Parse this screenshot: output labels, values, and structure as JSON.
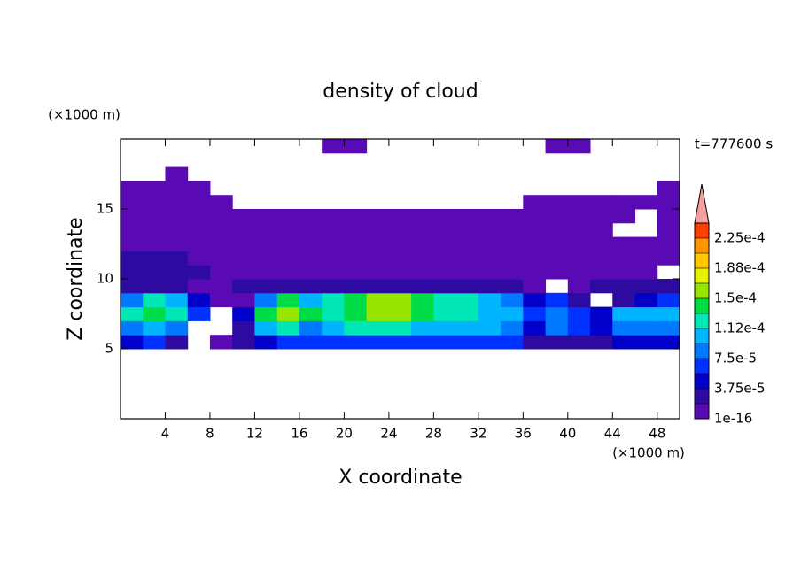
{
  "chart_data": {
    "type": "contourf",
    "title": "density of cloud",
    "xlabel": "X coordinate",
    "ylabel": "Z coordinate",
    "x_unit": "(×1000 m)",
    "y_unit": "(×1000 m)",
    "annotation": "t=777600 s",
    "xlim": [
      0,
      50
    ],
    "ylim": [
      0,
      20
    ],
    "xticks": [
      4,
      8,
      12,
      16,
      20,
      24,
      28,
      32,
      36,
      40,
      44,
      48
    ],
    "yticks": [
      5,
      10,
      15
    ],
    "colorbar": {
      "levels": [
        {
          "value": 1e-16,
          "label": "1e-16"
        },
        1.875e-05,
        {
          "value": 3.75e-05,
          "label": "3.75e-5"
        },
        5.625e-05,
        {
          "value": 7.5e-05,
          "label": "7.5e-5"
        },
        9.375e-05,
        {
          "value": 0.0001125,
          "label": "1.12e-4"
        },
        0.00013125,
        {
          "value": 0.00015,
          "label": "1.5e-4"
        },
        0.00016875,
        {
          "value": 0.0001875,
          "label": "1.88e-4"
        },
        0.00020625,
        {
          "value": 0.000225,
          "label": "2.25e-4"
        },
        0.00024375
      ],
      "colors": [
        "#5a0ab4",
        "#2d0aa0",
        "#0000c8",
        "#0032ff",
        "#0078ff",
        "#00b4ff",
        "#00e6b4",
        "#00dc46",
        "#96e600",
        "#e6f000",
        "#ffc800",
        "#ff9600",
        "#ff3c00"
      ],
      "extend_color": "#f4a0a0"
    },
    "field": {
      "x": [
        1,
        3,
        5,
        7,
        9,
        11,
        13,
        15,
        17,
        19,
        21,
        23,
        25,
        27,
        29,
        31,
        33,
        35,
        37,
        39,
        41,
        43,
        45,
        47,
        49
      ],
      "z": [
        5.5,
        6.5,
        7.5,
        8.5,
        9.5,
        10.5,
        11.5,
        12.5,
        13.5,
        14.5,
        15.5,
        16.5,
        17.5,
        19.5
      ],
      "values": [
        [
          5e-05,
          6e-05,
          3e-05,
          null,
          1e-05,
          3e-05,
          5e-05,
          6e-05,
          6e-05,
          6e-05,
          6e-05,
          6e-05,
          6e-05,
          6e-05,
          6e-05,
          6e-05,
          6e-05,
          6e-05,
          3e-05,
          3e-05,
          3e-05,
          3e-05,
          5e-05,
          5e-05,
          5e-05
        ],
        [
          8e-05,
          0.0001,
          8e-05,
          null,
          null,
          3e-05,
          0.0001,
          0.00012,
          8e-05,
          0.0001,
          0.00012,
          0.00012,
          0.00012,
          0.0001,
          0.0001,
          0.0001,
          0.0001,
          8e-05,
          5e-05,
          8e-05,
          6e-05,
          5e-05,
          8e-05,
          8e-05,
          8e-05
        ],
        [
          0.00012,
          0.00014,
          0.00012,
          6e-05,
          null,
          5e-05,
          0.00014,
          0.00016,
          0.00014,
          0.00012,
          0.00014,
          0.00016,
          0.00016,
          0.00014,
          0.00012,
          0.00012,
          0.0001,
          0.0001,
          6e-05,
          8e-05,
          6e-05,
          5e-05,
          0.0001,
          0.0001,
          0.0001
        ],
        [
          8e-05,
          0.00012,
          0.0001,
          5e-05,
          1e-05,
          1e-05,
          8e-05,
          0.00014,
          0.0001,
          0.00012,
          0.00014,
          0.00016,
          0.00016,
          0.00014,
          0.00012,
          0.00012,
          0.0001,
          8e-05,
          5e-05,
          6e-05,
          3e-05,
          null,
          3e-05,
          5e-05,
          6e-05
        ],
        [
          3e-05,
          3e-05,
          3e-05,
          1e-05,
          1e-05,
          3e-05,
          3e-05,
          3e-05,
          3e-05,
          3e-05,
          3e-05,
          3e-05,
          3e-05,
          3e-05,
          3e-05,
          3e-05,
          3e-05,
          3e-05,
          1e-05,
          null,
          1e-05,
          3e-05,
          3e-05,
          3e-05,
          3e-05
        ],
        [
          3e-05,
          3e-05,
          3e-05,
          3e-05,
          1e-05,
          1e-05,
          1e-05,
          1e-05,
          1e-05,
          1e-05,
          1e-05,
          1e-05,
          1e-05,
          1e-05,
          1e-05,
          1e-05,
          1e-05,
          1e-05,
          1e-05,
          1e-05,
          1e-05,
          1e-05,
          1e-05,
          1e-05,
          null
        ],
        [
          3e-05,
          3e-05,
          3e-05,
          1e-05,
          1e-05,
          1e-05,
          1e-05,
          1e-05,
          1e-05,
          1e-05,
          1e-05,
          1e-05,
          1e-05,
          1e-05,
          1e-05,
          1e-05,
          1e-05,
          1e-05,
          1e-05,
          1e-05,
          1e-05,
          1e-05,
          1e-05,
          1e-05,
          1e-05
        ],
        [
          1e-05,
          1e-05,
          1e-05,
          1e-05,
          1e-05,
          1e-05,
          1e-05,
          1e-05,
          1e-05,
          1e-05,
          1e-05,
          1e-05,
          1e-05,
          1e-05,
          1e-05,
          1e-05,
          1e-05,
          1e-05,
          1e-05,
          1e-05,
          1e-05,
          1e-05,
          1e-05,
          1e-05,
          1e-05
        ],
        [
          1e-05,
          1e-05,
          1e-05,
          1e-05,
          1e-05,
          1e-05,
          1e-05,
          1e-05,
          1e-05,
          1e-05,
          1e-05,
          1e-05,
          1e-05,
          1e-05,
          1e-05,
          1e-05,
          1e-05,
          1e-05,
          1e-05,
          1e-05,
          1e-05,
          1e-05,
          null,
          null,
          1e-05
        ],
        [
          1e-05,
          1e-05,
          1e-05,
          1e-05,
          1e-05,
          1e-05,
          1e-05,
          1e-05,
          1e-05,
          1e-05,
          1e-05,
          1e-05,
          1e-05,
          1e-05,
          1e-05,
          1e-05,
          1e-05,
          1e-05,
          1e-05,
          1e-05,
          1e-05,
          1e-05,
          1e-05,
          null,
          1e-05
        ],
        [
          1e-05,
          1e-05,
          1e-05,
          1e-05,
          1e-05,
          null,
          null,
          null,
          null,
          null,
          null,
          null,
          null,
          null,
          null,
          null,
          null,
          null,
          1e-05,
          1e-05,
          1e-05,
          1e-05,
          1e-05,
          1e-05,
          1e-05
        ],
        [
          1e-05,
          1e-05,
          1e-05,
          1e-05,
          null,
          null,
          null,
          null,
          null,
          null,
          null,
          null,
          null,
          null,
          null,
          null,
          null,
          null,
          null,
          null,
          null,
          null,
          null,
          null,
          1e-05
        ],
        [
          null,
          null,
          1e-05,
          null,
          null,
          null,
          null,
          null,
          null,
          null,
          null,
          null,
          null,
          null,
          null,
          null,
          null,
          null,
          null,
          null,
          null,
          null,
          null,
          null,
          null
        ],
        [
          null,
          null,
          null,
          null,
          null,
          null,
          null,
          null,
          null,
          1e-05,
          1e-05,
          null,
          null,
          null,
          null,
          null,
          null,
          null,
          null,
          1e-05,
          1e-05,
          null,
          null,
          null,
          null
        ]
      ]
    }
  }
}
